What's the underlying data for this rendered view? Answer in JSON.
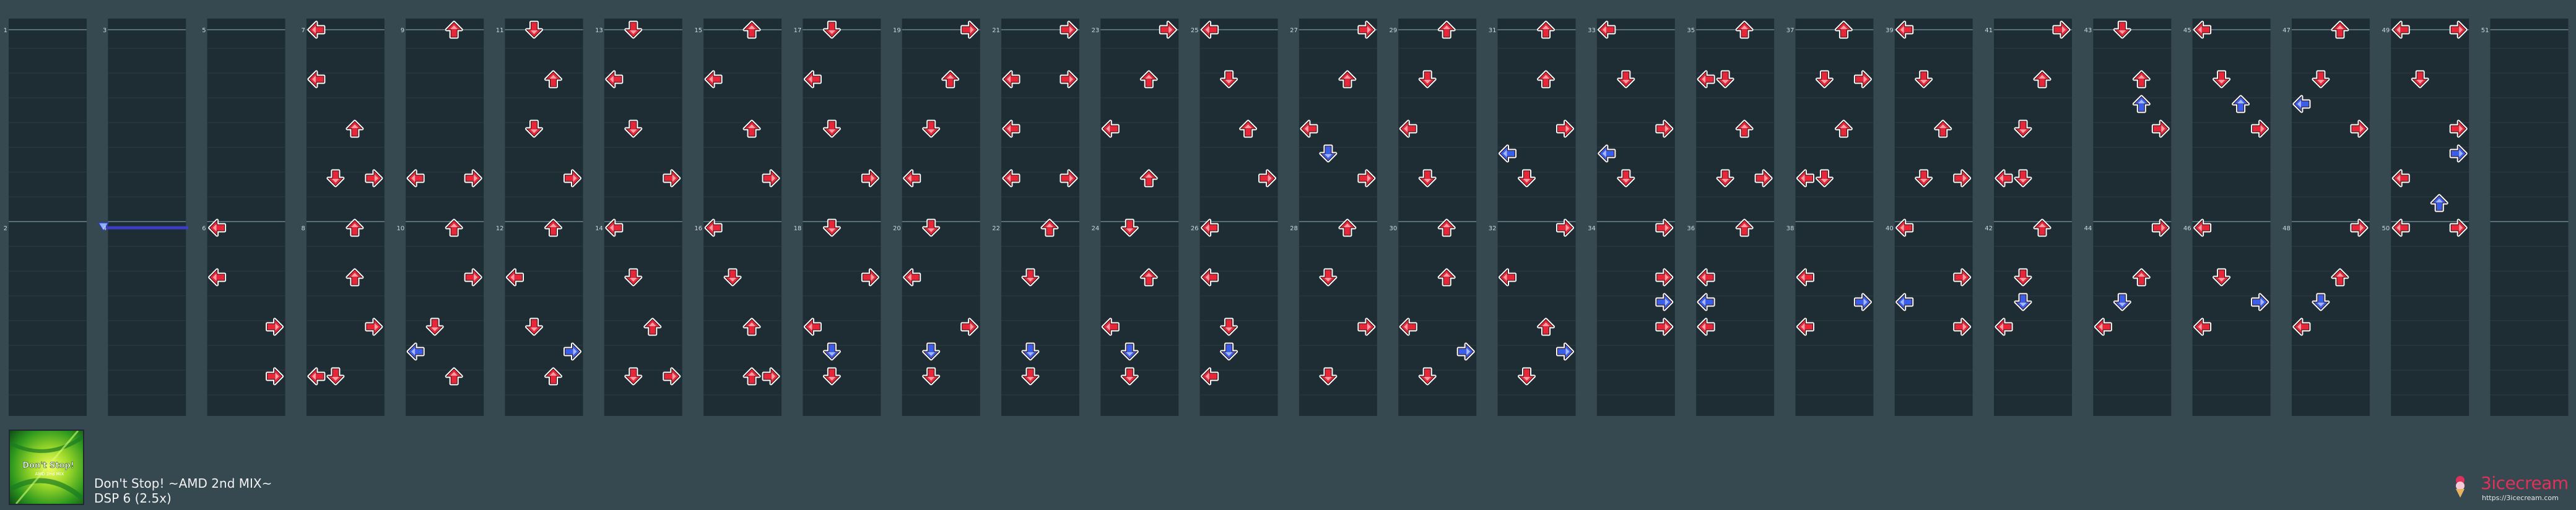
{
  "song": {
    "title": "Don't Stop! ~AMD 2nd MIX~",
    "difficulty": "DSP 6 (2.5x)"
  },
  "jacket": {
    "text_line1": "Don't Stop!",
    "text_line2": "AMD 2nd MIX"
  },
  "logo": {
    "name": "3icecream",
    "url": "https://3icecream.com"
  },
  "colors": {
    "background": "#364850",
    "column": "#1e2d33",
    "red_arrow": "#e8263a",
    "blue_arrow": "#3b5ee8",
    "freeze_bar": "#3c3cc8"
  },
  "measure_numbers": [
    [
      "1",
      "2"
    ],
    [
      "3",
      "4"
    ],
    [
      "5",
      "6"
    ],
    [
      "7",
      "8"
    ],
    [
      "9",
      "10"
    ],
    [
      "11",
      "12"
    ],
    [
      "13",
      "14"
    ],
    [
      "15",
      "16"
    ],
    [
      "17",
      "18"
    ],
    [
      "19",
      "20"
    ],
    [
      "21",
      "22"
    ],
    [
      "23",
      "24"
    ],
    [
      "25",
      "26"
    ],
    [
      "27",
      "28"
    ],
    [
      "29",
      "30"
    ],
    [
      "31",
      "32"
    ],
    [
      "33",
      "34"
    ],
    [
      "35",
      "36"
    ],
    [
      "37",
      "38"
    ],
    [
      "39",
      "40"
    ],
    [
      "41",
      "42"
    ],
    [
      "43",
      "44"
    ],
    [
      "45",
      "46"
    ],
    [
      "47",
      "48"
    ],
    [
      "49",
      "50"
    ],
    [
      "51",
      ""
    ]
  ],
  "notes": [
    {
      "c": 3,
      "r": 0,
      "d": "L",
      "t": "r"
    },
    {
      "c": 3,
      "r": 2,
      "d": "L",
      "t": "r"
    },
    {
      "c": 3,
      "r": 4,
      "d": "U",
      "t": "r"
    },
    {
      "c": 3,
      "r": 6,
      "d": "D",
      "t": "r"
    },
    {
      "c": 3,
      "r": 6,
      "d": "R",
      "t": "r"
    },
    {
      "c": 3,
      "r": 8,
      "d": "U",
      "t": "r"
    },
    {
      "c": 3,
      "r": 10,
      "d": "U",
      "t": "r"
    },
    {
      "c": 3,
      "r": 12,
      "d": "R",
      "t": "r"
    },
    {
      "c": 3,
      "r": 14,
      "d": "L",
      "t": "r"
    },
    {
      "c": 3,
      "r": 14,
      "d": "D",
      "t": "r"
    },
    {
      "c": 2,
      "r": 8,
      "d": "L",
      "t": "r"
    },
    {
      "c": 2,
      "r": 10,
      "d": "L",
      "t": "r"
    },
    {
      "c": 2,
      "r": 12,
      "d": "R",
      "t": "r"
    },
    {
      "c": 2,
      "r": 14,
      "d": "R",
      "t": "r"
    },
    {
      "c": 4,
      "r": 0,
      "d": "U",
      "t": "r"
    },
    {
      "c": 4,
      "r": 6,
      "d": "L",
      "t": "r"
    },
    {
      "c": 4,
      "r": 6,
      "d": "R",
      "t": "r"
    },
    {
      "c": 4,
      "r": 8,
      "d": "U",
      "t": "r"
    },
    {
      "c": 4,
      "r": 10,
      "d": "R",
      "t": "r"
    },
    {
      "c": 4,
      "r": 12,
      "d": "D",
      "t": "r"
    },
    {
      "c": 4,
      "r": 13,
      "d": "L",
      "t": "b"
    },
    {
      "c": 4,
      "r": 14,
      "d": "U",
      "t": "r"
    },
    {
      "c": 5,
      "r": 0,
      "d": "D",
      "t": "r"
    },
    {
      "c": 5,
      "r": 2,
      "d": "U",
      "t": "r"
    },
    {
      "c": 5,
      "r": 4,
      "d": "D",
      "t": "r"
    },
    {
      "c": 5,
      "r": 6,
      "d": "R",
      "t": "r"
    },
    {
      "c": 5,
      "r": 8,
      "d": "U",
      "t": "r"
    },
    {
      "c": 5,
      "r": 10,
      "d": "L",
      "t": "r"
    },
    {
      "c": 5,
      "r": 12,
      "d": "D",
      "t": "r"
    },
    {
      "c": 5,
      "r": 13,
      "d": "R",
      "t": "b"
    },
    {
      "c": 5,
      "r": 14,
      "d": "U",
      "t": "r"
    },
    {
      "c": 6,
      "r": 0,
      "d": "D",
      "t": "r"
    },
    {
      "c": 6,
      "r": 2,
      "d": "L",
      "t": "r"
    },
    {
      "c": 6,
      "r": 4,
      "d": "D",
      "t": "r"
    },
    {
      "c": 6,
      "r": 6,
      "d": "R",
      "t": "r"
    },
    {
      "c": 6,
      "r": 8,
      "d": "L",
      "t": "r"
    },
    {
      "c": 6,
      "r": 10,
      "d": "D",
      "t": "r"
    },
    {
      "c": 6,
      "r": 12,
      "d": "U",
      "t": "r"
    },
    {
      "c": 6,
      "r": 14,
      "d": "D",
      "t": "r"
    },
    {
      "c": 6,
      "r": 14,
      "d": "R",
      "t": "r"
    },
    {
      "c": 7,
      "r": 0,
      "d": "U",
      "t": "r"
    },
    {
      "c": 7,
      "r": 2,
      "d": "L",
      "t": "r"
    },
    {
      "c": 7,
      "r": 4,
      "d": "U",
      "t": "r"
    },
    {
      "c": 7,
      "r": 6,
      "d": "R",
      "t": "r"
    },
    {
      "c": 7,
      "r": 8,
      "d": "L",
      "t": "r"
    },
    {
      "c": 7,
      "r": 10,
      "d": "D",
      "t": "r"
    },
    {
      "c": 7,
      "r": 12,
      "d": "U",
      "t": "r"
    },
    {
      "c": 7,
      "r": 14,
      "d": "U",
      "t": "r"
    },
    {
      "c": 7,
      "r": 14,
      "d": "R",
      "t": "r"
    },
    {
      "c": 8,
      "r": 0,
      "d": "D",
      "t": "r"
    },
    {
      "c": 8,
      "r": 2,
      "d": "L",
      "t": "r"
    },
    {
      "c": 8,
      "r": 4,
      "d": "D",
      "t": "r"
    },
    {
      "c": 8,
      "r": 6,
      "d": "R",
      "t": "r"
    },
    {
      "c": 8,
      "r": 8,
      "d": "D",
      "t": "r"
    },
    {
      "c": 8,
      "r": 10,
      "d": "R",
      "t": "r"
    },
    {
      "c": 8,
      "r": 12,
      "d": "L",
      "t": "r"
    },
    {
      "c": 8,
      "r": 13,
      "d": "D",
      "t": "b"
    },
    {
      "c": 8,
      "r": 14,
      "d": "D",
      "t": "r"
    },
    {
      "c": 9,
      "r": 0,
      "d": "R",
      "t": "r"
    },
    {
      "c": 9,
      "r": 2,
      "d": "U",
      "t": "r"
    },
    {
      "c": 9,
      "r": 4,
      "d": "D",
      "t": "r"
    },
    {
      "c": 9,
      "r": 6,
      "d": "L",
      "t": "r"
    },
    {
      "c": 9,
      "r": 8,
      "d": "D",
      "t": "r"
    },
    {
      "c": 9,
      "r": 10,
      "d": "L",
      "t": "r"
    },
    {
      "c": 9,
      "r": 12,
      "d": "R",
      "t": "r"
    },
    {
      "c": 9,
      "r": 13,
      "d": "D",
      "t": "b"
    },
    {
      "c": 9,
      "r": 14,
      "d": "D",
      "t": "r"
    },
    {
      "c": 10,
      "r": 0,
      "d": "R",
      "t": "r"
    },
    {
      "c": 10,
      "r": 2,
      "d": "L",
      "t": "r"
    },
    {
      "c": 10,
      "r": 2,
      "d": "R",
      "t": "r"
    },
    {
      "c": 10,
      "r": 4,
      "d": "L",
      "t": "r"
    },
    {
      "c": 10,
      "r": 6,
      "d": "L",
      "t": "r"
    },
    {
      "c": 10,
      "r": 6,
      "d": "R",
      "t": "r"
    },
    {
      "c": 10,
      "r": 8,
      "d": "U",
      "t": "r"
    },
    {
      "c": 10,
      "r": 10,
      "d": "D",
      "t": "r"
    },
    {
      "c": 10,
      "r": 13,
      "d": "D",
      "t": "b"
    },
    {
      "c": 10,
      "r": 14,
      "d": "D",
      "t": "r"
    },
    {
      "c": 11,
      "r": 0,
      "d": "R",
      "t": "r"
    },
    {
      "c": 11,
      "r": 2,
      "d": "U",
      "t": "r"
    },
    {
      "c": 11,
      "r": 4,
      "d": "L",
      "t": "r"
    },
    {
      "c": 11,
      "r": 6,
      "d": "U",
      "t": "r"
    },
    {
      "c": 11,
      "r": 8,
      "d": "D",
      "t": "r"
    },
    {
      "c": 11,
      "r": 10,
      "d": "U",
      "t": "r"
    },
    {
      "c": 11,
      "r": 12,
      "d": "L",
      "t": "r"
    },
    {
      "c": 11,
      "r": 13,
      "d": "D",
      "t": "b"
    },
    {
      "c": 11,
      "r": 14,
      "d": "D",
      "t": "r"
    },
    {
      "c": 12,
      "r": 0,
      "d": "L",
      "t": "r"
    },
    {
      "c": 12,
      "r": 2,
      "d": "D",
      "t": "r"
    },
    {
      "c": 12,
      "r": 4,
      "d": "U",
      "t": "r"
    },
    {
      "c": 12,
      "r": 6,
      "d": "R",
      "t": "r"
    },
    {
      "c": 12,
      "r": 8,
      "d": "L",
      "t": "r"
    },
    {
      "c": 12,
      "r": 10,
      "d": "L",
      "t": "r"
    },
    {
      "c": 12,
      "r": 12,
      "d": "D",
      "t": "r"
    },
    {
      "c": 12,
      "r": 13,
      "d": "D",
      "t": "b"
    },
    {
      "c": 12,
      "r": 14,
      "d": "L",
      "t": "r"
    },
    {
      "c": 13,
      "r": 0,
      "d": "R",
      "t": "r"
    },
    {
      "c": 13,
      "r": 2,
      "d": "U",
      "t": "r"
    },
    {
      "c": 13,
      "r": 4,
      "d": "L",
      "t": "r"
    },
    {
      "c": 13,
      "r": 5,
      "d": "D",
      "t": "b"
    },
    {
      "c": 13,
      "r": 6,
      "d": "R",
      "t": "r"
    },
    {
      "c": 13,
      "r": 8,
      "d": "U",
      "t": "r"
    },
    {
      "c": 13,
      "r": 10,
      "d": "D",
      "t": "r"
    },
    {
      "c": 13,
      "r": 12,
      "d": "R",
      "t": "r"
    },
    {
      "c": 13,
      "r": 14,
      "d": "D",
      "t": "r"
    },
    {
      "c": 14,
      "r": 0,
      "d": "U",
      "t": "r"
    },
    {
      "c": 14,
      "r": 2,
      "d": "D",
      "t": "r"
    },
    {
      "c": 14,
      "r": 4,
      "d": "L",
      "t": "r"
    },
    {
      "c": 14,
      "r": 6,
      "d": "D",
      "t": "r"
    },
    {
      "c": 14,
      "r": 8,
      "d": "U",
      "t": "r"
    },
    {
      "c": 14,
      "r": 10,
      "d": "U",
      "t": "r"
    },
    {
      "c": 14,
      "r": 12,
      "d": "L",
      "t": "r"
    },
    {
      "c": 14,
      "r": 13,
      "d": "R",
      "t": "b"
    },
    {
      "c": 14,
      "r": 14,
      "d": "D",
      "t": "r"
    },
    {
      "c": 15,
      "r": 0,
      "d": "U",
      "t": "r"
    },
    {
      "c": 15,
      "r": 2,
      "d": "U",
      "t": "r"
    },
    {
      "c": 15,
      "r": 4,
      "d": "R",
      "t": "r"
    },
    {
      "c": 15,
      "r": 5,
      "d": "L",
      "t": "b"
    },
    {
      "c": 15,
      "r": 6,
      "d": "D",
      "t": "r"
    },
    {
      "c": 15,
      "r": 8,
      "d": "R",
      "t": "r"
    },
    {
      "c": 15,
      "r": 10,
      "d": "L",
      "t": "r"
    },
    {
      "c": 15,
      "r": 12,
      "d": "U",
      "t": "r"
    },
    {
      "c": 15,
      "r": 13,
      "d": "R",
      "t": "b"
    },
    {
      "c": 15,
      "r": 14,
      "d": "D",
      "t": "r"
    },
    {
      "c": 16,
      "r": 0,
      "d": "L",
      "t": "r"
    },
    {
      "c": 16,
      "r": 2,
      "d": "D",
      "t": "r"
    },
    {
      "c": 16,
      "r": 4,
      "d": "R",
      "t": "r"
    },
    {
      "c": 16,
      "r": 5,
      "d": "L",
      "t": "b"
    },
    {
      "c": 16,
      "r": 6,
      "d": "D",
      "t": "r"
    },
    {
      "c": 16,
      "r": 8,
      "d": "R",
      "t": "r"
    },
    {
      "c": 16,
      "r": 10,
      "d": "R",
      "t": "r"
    },
    {
      "c": 16,
      "r": 11,
      "d": "R",
      "t": "b"
    },
    {
      "c": 16,
      "r": 12,
      "d": "R",
      "t": "r"
    },
    {
      "c": 17,
      "r": 0,
      "d": "U",
      "t": "r"
    },
    {
      "c": 17,
      "r": 2,
      "d": "L",
      "t": "r"
    },
    {
      "c": 17,
      "r": 2,
      "d": "D",
      "t": "r"
    },
    {
      "c": 17,
      "r": 4,
      "d": "U",
      "t": "r"
    },
    {
      "c": 17,
      "r": 6,
      "d": "D",
      "t": "r"
    },
    {
      "c": 17,
      "r": 6,
      "d": "R",
      "t": "r"
    },
    {
      "c": 17,
      "r": 8,
      "d": "U",
      "t": "r"
    },
    {
      "c": 17,
      "r": 10,
      "d": "L",
      "t": "r"
    },
    {
      "c": 17,
      "r": 11,
      "d": "L",
      "t": "b"
    },
    {
      "c": 17,
      "r": 12,
      "d": "L",
      "t": "r"
    },
    {
      "c": 18,
      "r": 0,
      "d": "U",
      "t": "r"
    },
    {
      "c": 18,
      "r": 2,
      "d": "D",
      "t": "r"
    },
    {
      "c": 18,
      "r": 2,
      "d": "R",
      "t": "r"
    },
    {
      "c": 18,
      "r": 4,
      "d": "U",
      "t": "r"
    },
    {
      "c": 18,
      "r": 6,
      "d": "L",
      "t": "r"
    },
    {
      "c": 18,
      "r": 6,
      "d": "D",
      "t": "r"
    },
    {
      "c": 18,
      "r": 10,
      "d": "L",
      "t": "r"
    },
    {
      "c": 18,
      "r": 11,
      "d": "R",
      "t": "b"
    },
    {
      "c": 18,
      "r": 12,
      "d": "L",
      "t": "r"
    },
    {
      "c": 19,
      "r": 0,
      "d": "L",
      "t": "r"
    },
    {
      "c": 19,
      "r": 2,
      "d": "D",
      "t": "r"
    },
    {
      "c": 19,
      "r": 4,
      "d": "U",
      "t": "r"
    },
    {
      "c": 19,
      "r": 6,
      "d": "D",
      "t": "r"
    },
    {
      "c": 19,
      "r": 6,
      "d": "R",
      "t": "r"
    },
    {
      "c": 19,
      "r": 8,
      "d": "L",
      "t": "r"
    },
    {
      "c": 19,
      "r": 10,
      "d": "R",
      "t": "r"
    },
    {
      "c": 19,
      "r": 11,
      "d": "L",
      "t": "b"
    },
    {
      "c": 19,
      "r": 12,
      "d": "R",
      "t": "r"
    },
    {
      "c": 20,
      "r": 0,
      "d": "R",
      "t": "r"
    },
    {
      "c": 20,
      "r": 2,
      "d": "U",
      "t": "r"
    },
    {
      "c": 20,
      "r": 4,
      "d": "D",
      "t": "r"
    },
    {
      "c": 20,
      "r": 6,
      "d": "L",
      "t": "r"
    },
    {
      "c": 20,
      "r": 6,
      "d": "D",
      "t": "r"
    },
    {
      "c": 20,
      "r": 8,
      "d": "U",
      "t": "r"
    },
    {
      "c": 20,
      "r": 10,
      "d": "D",
      "t": "r"
    },
    {
      "c": 20,
      "r": 11,
      "d": "D",
      "t": "b"
    },
    {
      "c": 20,
      "r": 12,
      "d": "L",
      "t": "r"
    },
    {
      "c": 21,
      "r": 0,
      "d": "D",
      "t": "r"
    },
    {
      "c": 21,
      "r": 2,
      "d": "U",
      "t": "r"
    },
    {
      "c": 21,
      "r": 3,
      "d": "U",
      "t": "b"
    },
    {
      "c": 21,
      "r": 4,
      "d": "R",
      "t": "r"
    },
    {
      "c": 21,
      "r": 8,
      "d": "R",
      "t": "r"
    },
    {
      "c": 21,
      "r": 10,
      "d": "U",
      "t": "r"
    },
    {
      "c": 21,
      "r": 11,
      "d": "D",
      "t": "b"
    },
    {
      "c": 21,
      "r": 12,
      "d": "L",
      "t": "r"
    },
    {
      "c": 22,
      "r": 0,
      "d": "L",
      "t": "r"
    },
    {
      "c": 22,
      "r": 2,
      "d": "D",
      "t": "r"
    },
    {
      "c": 22,
      "r": 3,
      "d": "U",
      "t": "b"
    },
    {
      "c": 22,
      "r": 4,
      "d": "R",
      "t": "r"
    },
    {
      "c": 22,
      "r": 8,
      "d": "L",
      "t": "r"
    },
    {
      "c": 22,
      "r": 10,
      "d": "D",
      "t": "r"
    },
    {
      "c": 22,
      "r": 11,
      "d": "R",
      "t": "b"
    },
    {
      "c": 22,
      "r": 12,
      "d": "L",
      "t": "r"
    },
    {
      "c": 23,
      "r": 0,
      "d": "U",
      "t": "r"
    },
    {
      "c": 23,
      "r": 2,
      "d": "D",
      "t": "r"
    },
    {
      "c": 23,
      "r": 3,
      "d": "L",
      "t": "b"
    },
    {
      "c": 23,
      "r": 4,
      "d": "R",
      "t": "r"
    },
    {
      "c": 23,
      "r": 8,
      "d": "R",
      "t": "r"
    },
    {
      "c": 23,
      "r": 10,
      "d": "U",
      "t": "r"
    },
    {
      "c": 23,
      "r": 11,
      "d": "D",
      "t": "b"
    },
    {
      "c": 23,
      "r": 12,
      "d": "L",
      "t": "r"
    },
    {
      "c": 24,
      "r": 0,
      "d": "L",
      "t": "r"
    },
    {
      "c": 24,
      "r": 0,
      "d": "R",
      "t": "r"
    },
    {
      "c": 24,
      "r": 2,
      "d": "D",
      "t": "r"
    },
    {
      "c": 24,
      "r": 4,
      "d": "R",
      "t": "r"
    },
    {
      "c": 24,
      "r": 5,
      "d": "R",
      "t": "b"
    },
    {
      "c": 24,
      "r": 6,
      "d": "L",
      "t": "r"
    },
    {
      "c": 24,
      "r": 7,
      "d": "U",
      "t": "b"
    },
    {
      "c": 24,
      "r": 8,
      "d": "L",
      "t": "r"
    },
    {
      "c": 24,
      "r": 8,
      "d": "R",
      "t": "r"
    }
  ]
}
